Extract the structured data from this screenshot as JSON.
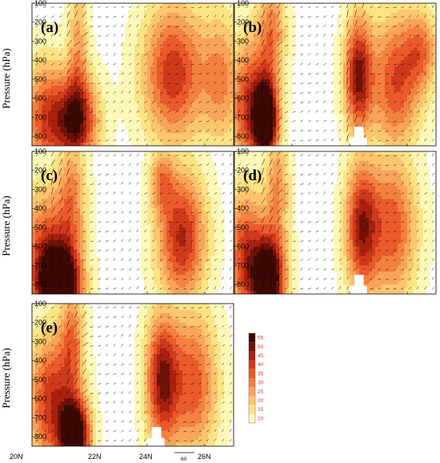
{
  "chart_data": {
    "type": "heatmap",
    "description_units": "contour-filled cross-sections with wind vectors",
    "ylabel": "Pressure (hPa)",
    "ylim": [
      100,
      850
    ],
    "y_ticks": [
      "100",
      "200",
      "300",
      "400",
      "500",
      "600",
      "700",
      "800"
    ],
    "y_tick_values": [
      100,
      200,
      300,
      400,
      500,
      600,
      700,
      800
    ],
    "xlim": [
      20,
      27
    ],
    "x_ticks": [
      "20N",
      "22N",
      "24N",
      "26N"
    ],
    "x_tick_values": [
      20,
      22,
      24,
      26
    ],
    "reference_vector_label": "60",
    "colorbar": {
      "levels": [
        10,
        15,
        20,
        25,
        30,
        35,
        40,
        45,
        50,
        55
      ],
      "labels": [
        "10",
        "15",
        "20",
        "25",
        "30",
        "35",
        "40",
        "45",
        "50",
        "55"
      ],
      "colors": [
        "#ffffff",
        "#fdf7b8",
        "#fce485",
        "#fbc66e",
        "#f8a45a",
        "#f3813f",
        "#ea5a2a",
        "#d03a1c",
        "#a8210f",
        "#6e1208",
        "#3d0904"
      ]
    },
    "panels": [
      {
        "label": "(a)",
        "blobs": [
          {
            "x": 21.5,
            "p": 720,
            "sx": 0.55,
            "sp": 170,
            "a": 46
          },
          {
            "x": 20.4,
            "p": 700,
            "sx": 0.5,
            "sp": 220,
            "a": 28
          },
          {
            "x": 21.6,
            "p": 300,
            "sx": 0.25,
            "sp": 260,
            "a": 18
          },
          {
            "x": 24.9,
            "p": 470,
            "sx": 0.75,
            "sp": 260,
            "a": 36
          },
          {
            "x": 26.6,
            "p": 500,
            "sx": 0.5,
            "sp": 250,
            "a": 22
          }
        ],
        "hill": false
      },
      {
        "label": "(b)",
        "blobs": [
          {
            "x": 21.1,
            "p": 720,
            "sx": 0.3,
            "sp": 150,
            "a": 56
          },
          {
            "x": 20.5,
            "p": 640,
            "sx": 0.5,
            "sp": 250,
            "a": 34
          },
          {
            "x": 21.3,
            "p": 250,
            "sx": 0.35,
            "sp": 200,
            "a": 24
          },
          {
            "x": 24.3,
            "p": 480,
            "sx": 0.35,
            "sp": 220,
            "a": 42
          },
          {
            "x": 25.6,
            "p": 520,
            "sx": 0.6,
            "sp": 260,
            "a": 32
          },
          {
            "x": 26.5,
            "p": 350,
            "sx": 0.4,
            "sp": 150,
            "a": 22
          }
        ],
        "hill": true
      },
      {
        "label": "(c)",
        "blobs": [
          {
            "x": 21.0,
            "p": 820,
            "sx": 0.5,
            "sp": 140,
            "a": 58
          },
          {
            "x": 20.5,
            "p": 650,
            "sx": 0.6,
            "sp": 250,
            "a": 34
          },
          {
            "x": 21.4,
            "p": 350,
            "sx": 0.35,
            "sp": 250,
            "a": 22
          },
          {
            "x": 25.2,
            "p": 550,
            "sx": 0.6,
            "sp": 250,
            "a": 38
          },
          {
            "x": 24.5,
            "p": 250,
            "sx": 0.3,
            "sp": 120,
            "a": 20
          }
        ],
        "hill": false
      },
      {
        "label": "(d)",
        "blobs": [
          {
            "x": 21.2,
            "p": 780,
            "sx": 0.4,
            "sp": 160,
            "a": 56
          },
          {
            "x": 20.4,
            "p": 650,
            "sx": 0.5,
            "sp": 250,
            "a": 34
          },
          {
            "x": 21.5,
            "p": 300,
            "sx": 0.3,
            "sp": 220,
            "a": 22
          },
          {
            "x": 24.4,
            "p": 500,
            "sx": 0.4,
            "sp": 250,
            "a": 38
          },
          {
            "x": 25.5,
            "p": 500,
            "sx": 0.6,
            "sp": 280,
            "a": 30
          }
        ],
        "hill": true
      },
      {
        "label": "(e)",
        "blobs": [
          {
            "x": 21.5,
            "p": 800,
            "sx": 0.35,
            "sp": 130,
            "a": 58
          },
          {
            "x": 20.7,
            "p": 620,
            "sx": 0.6,
            "sp": 260,
            "a": 36
          },
          {
            "x": 21.4,
            "p": 280,
            "sx": 0.3,
            "sp": 200,
            "a": 22
          },
          {
            "x": 24.5,
            "p": 500,
            "sx": 0.4,
            "sp": 250,
            "a": 40
          },
          {
            "x": 25.6,
            "p": 520,
            "sx": 0.6,
            "sp": 280,
            "a": 30
          }
        ],
        "hill": true
      }
    ]
  }
}
